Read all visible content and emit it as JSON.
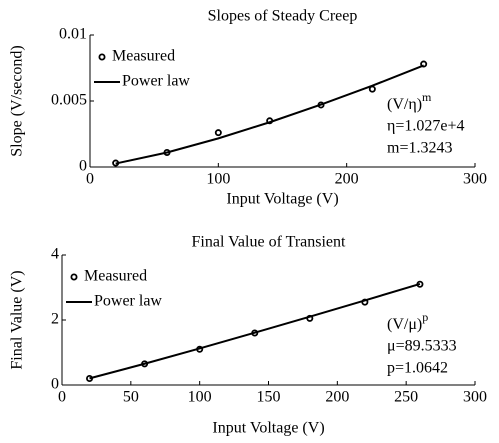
{
  "chart_data": [
    {
      "type": "scatter",
      "title": "Slopes of Steady Creep",
      "xlabel": "Input Voltage (V)",
      "ylabel": "Slope (V/second)",
      "x": [
        20,
        60,
        100,
        140,
        180,
        220,
        260
      ],
      "series": [
        {
          "name": "Measured",
          "color": "#000000",
          "mode": "markers",
          "values": [
            0.0003,
            0.0011,
            0.0026,
            0.0035,
            0.0047,
            0.0059,
            0.0078
          ]
        },
        {
          "name": "Power law",
          "color": "#000000",
          "mode": "line",
          "values": [
            0.00026,
            0.0011,
            0.00217,
            0.00339,
            0.00473,
            0.00616,
            0.00769
          ]
        }
      ],
      "xlim": [
        0,
        300
      ],
      "xticks": [
        0,
        100,
        200,
        300
      ],
      "ylim": [
        0,
        0.01
      ],
      "yticks": [
        0,
        0.005,
        0.01
      ],
      "legend": "upper left",
      "annotation": {
        "base": "(V/η)",
        "sup": "m",
        "lines": [
          "η=1.027e+4",
          "m=1.3243"
        ]
      }
    },
    {
      "type": "scatter",
      "title": "Final Value of Transient",
      "xlabel": "Input Voltage (V)",
      "ylabel": "Final Value (V)",
      "x": [
        20,
        60,
        100,
        140,
        180,
        220,
        260
      ],
      "series": [
        {
          "name": "Measured",
          "color": "#000000",
          "mode": "markers",
          "values": [
            0.2,
            0.65,
            1.1,
            1.6,
            2.05,
            2.55,
            3.1
          ]
        },
        {
          "name": "Power law",
          "color": "#000000",
          "mode": "line",
          "values": [
            0.203,
            0.653,
            1.125,
            1.609,
            2.102,
            2.603,
            3.11
          ]
        }
      ],
      "xlim": [
        0,
        300
      ],
      "xticks": [
        0,
        50,
        100,
        150,
        200,
        250,
        300
      ],
      "ylim": [
        0,
        4
      ],
      "yticks": [
        0,
        2,
        4
      ],
      "legend": "upper left",
      "annotation": {
        "base": "(V/μ)",
        "sup": "p",
        "lines": [
          "μ=89.5333",
          "p=1.0642"
        ]
      }
    }
  ]
}
